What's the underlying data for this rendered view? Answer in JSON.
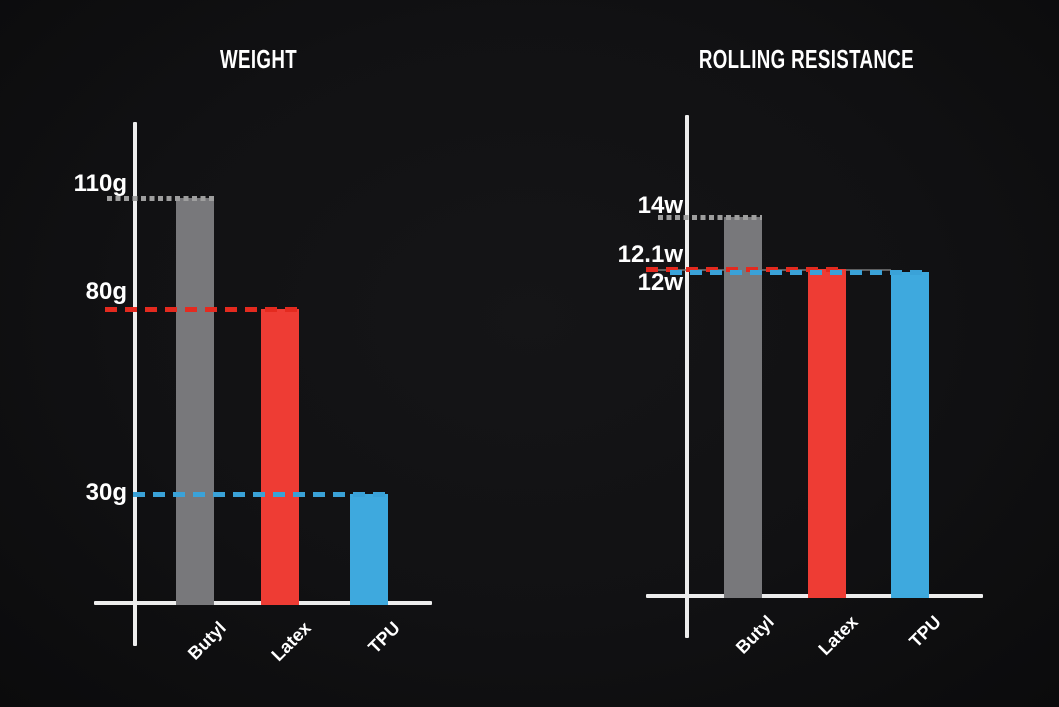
{
  "page": {
    "background_color": "#111113",
    "text_color": "#ffffff",
    "axis_color": "#ededed"
  },
  "chart_data": [
    {
      "type": "bar",
      "title": "WEIGHT",
      "categories": [
        "Butyl",
        "Latex",
        "TPU"
      ],
      "values": [
        110,
        80,
        30
      ],
      "unit": "g",
      "value_labels": [
        "110g",
        "80g",
        "30g"
      ],
      "bar_colors": [
        "#78787b",
        "#ee3c34",
        "#3ea9de"
      ],
      "leader_line_styles": [
        "dotted",
        "dashed",
        "dashed"
      ],
      "leader_line_colors": [
        "#9e9e9e",
        "#e42a1f",
        "#3aa2d8"
      ],
      "xlabel": "",
      "ylabel": "",
      "ylim": [
        0,
        130
      ],
      "grid": false,
      "legend": false,
      "category_label_rotation_deg": -45
    },
    {
      "type": "bar",
      "title": "ROLLING RESISTANCE",
      "categories": [
        "Butyl",
        "Latex",
        "TPU"
      ],
      "values": [
        14,
        12.1,
        12
      ],
      "unit": "w",
      "value_labels": [
        "14w",
        "12.1w",
        "12w"
      ],
      "bar_colors": [
        "#78787b",
        "#ee3c34",
        "#3ea9de"
      ],
      "leader_line_styles": [
        "dotted",
        "dashed",
        "dashed"
      ],
      "leader_line_colors": [
        "#9e9e9e",
        "#e42a1f",
        "#3aa2d8"
      ],
      "xlabel": "",
      "ylabel": "",
      "ylim": [
        0,
        17.8
      ],
      "grid": false,
      "legend": false,
      "category_label_rotation_deg": -45
    }
  ]
}
